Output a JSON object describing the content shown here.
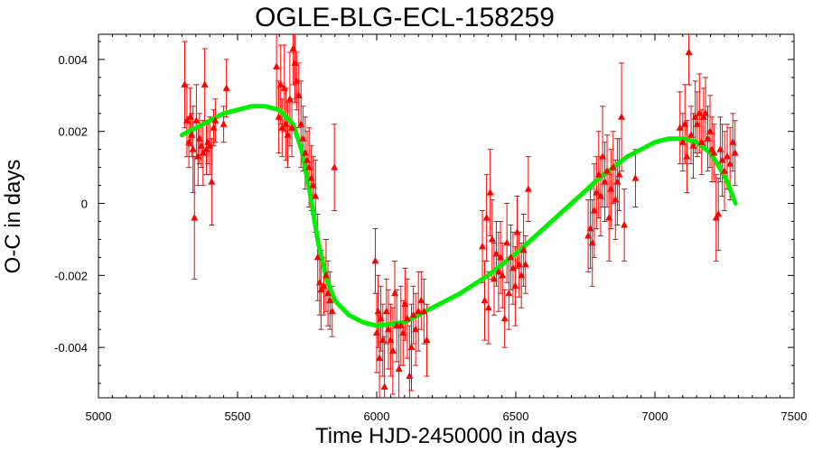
{
  "chart_data": {
    "type": "scatter",
    "title": "OGLE-BLG-ECL-158259",
    "xlabel": "Time HJD-2450000 in days",
    "ylabel": "O-C in days",
    "xlim": [
      5000,
      7500
    ],
    "ylim": [
      -0.0054,
      0.0047
    ],
    "x_ticks": [
      5000,
      5500,
      6000,
      6500,
      7000,
      7500
    ],
    "y_ticks": [
      -0.004,
      -0.002,
      0,
      0.002,
      0.004
    ],
    "x_tick_labels": [
      "5000",
      "5500",
      "6000",
      "6500",
      "7000",
      "7500"
    ],
    "y_tick_labels": [
      "-0.004",
      "-0.002",
      "0",
      "0.002",
      "0.004"
    ],
    "grid": false,
    "colors": {
      "points": "#ff0000",
      "fit": "#00ee00",
      "axes": "#000000"
    },
    "series": [
      {
        "type": "scatter_errorbars",
        "marker": "triangle",
        "x": [
          5310,
          5318,
          5325,
          5330,
          5335,
          5340,
          5345,
          5352,
          5358,
          5363,
          5370,
          5376,
          5382,
          5388,
          5393,
          5400,
          5407,
          5414,
          5420,
          5450,
          5460,
          5640,
          5648,
          5655,
          5660,
          5668,
          5674,
          5680,
          5688,
          5695,
          5700,
          5706,
          5712,
          5720,
          5728,
          5735,
          5743,
          5750,
          5757,
          5765,
          5772,
          5780,
          5788,
          5795,
          5800,
          5810,
          5818,
          5825,
          5832,
          5840,
          5848,
          5995,
          6000,
          6005,
          6010,
          6015,
          6022,
          6028,
          6035,
          6042,
          6050,
          6058,
          6065,
          6072,
          6080,
          6087,
          6095,
          6102,
          6110,
          6118,
          6125,
          6132,
          6140,
          6150,
          6160,
          6170,
          6180,
          6380,
          6388,
          6395,
          6402,
          6408,
          6415,
          6422,
          6430,
          6438,
          6445,
          6452,
          6460,
          6468,
          6475,
          6482,
          6490,
          6498,
          6505,
          6512,
          6520,
          6528,
          6535,
          6545,
          6760,
          6768,
          6775,
          6782,
          6790,
          6798,
          6805,
          6812,
          6820,
          6828,
          6835,
          6842,
          6850,
          6858,
          6865,
          6872,
          6880,
          6890,
          6930,
          7090,
          7100,
          7108,
          7115,
          7122,
          7130,
          7138,
          7145,
          7152,
          7160,
          7168,
          7175,
          7182,
          7190,
          7198,
          7205,
          7212,
          7220,
          7228,
          7235,
          7242,
          7250,
          7260,
          7270,
          7280,
          7288
        ],
        "y": [
          0.0033,
          0.0023,
          0.0017,
          0.0024,
          0.0019,
          0.0015,
          -0.0004,
          0.0023,
          0.0013,
          0.0018,
          0.0016,
          0.0014,
          0.0033,
          0.0015,
          0.0017,
          0.0016,
          0.0006,
          0.0021,
          0.0023,
          0.0022,
          0.0032,
          0.0038,
          0.0024,
          0.0033,
          0.0021,
          0.0032,
          0.0022,
          0.0019,
          0.0029,
          0.0021,
          0.0043,
          0.0039,
          0.0034,
          0.003,
          0.0022,
          0.0018,
          0.0014,
          0.0012,
          0.001,
          0.0007,
          0.0005,
          0.0002,
          -0.0015,
          -0.0022,
          -0.0024,
          -0.0023,
          -0.002,
          -0.0025,
          -0.0027,
          -0.003,
          0.001,
          -0.0016,
          -0.0036,
          -0.003,
          -0.0043,
          -0.0032,
          -0.0038,
          -0.0051,
          -0.003,
          -0.0035,
          -0.0038,
          -0.0041,
          -0.0025,
          -0.0034,
          -0.0046,
          -0.0034,
          -0.0036,
          -0.0028,
          -0.0032,
          -0.0048,
          -0.004,
          -0.0031,
          -0.0035,
          -0.003,
          -0.0027,
          -0.003,
          -0.0038,
          -0.0012,
          -0.0027,
          -0.0004,
          -0.0029,
          0.0003,
          -0.001,
          -0.0021,
          -0.0014,
          -0.0019,
          -0.0015,
          -0.002,
          -0.0032,
          -0.0011,
          -0.0025,
          -0.0015,
          -0.0018,
          -0.0023,
          -0.0008,
          -0.0017,
          -0.002,
          -0.0013,
          -0.0017,
          0.0004,
          -0.0009,
          -0.0007,
          -0.0011,
          -0.0002,
          0.0003,
          0.0008,
          0.0002,
          0.0013,
          0.0006,
          0.0009,
          -0.0004,
          0.0004,
          0.001,
          0.0001,
          0.0006,
          0.0008,
          0.0024,
          -0.0006,
          0.0007,
          0.0021,
          0.0017,
          0.0022,
          0.0013,
          0.0042,
          0.0019,
          0.0016,
          0.0024,
          0.0022,
          0.0025,
          0.0017,
          0.0024,
          0.0025,
          0.0018,
          0.002,
          0.0015,
          0.0014,
          -0.0004,
          -0.0003,
          0.0015,
          0.0012,
          0.0009,
          0.0013,
          0.0011,
          0.0017,
          0.0014
        ],
        "yerr": [
          0.0012,
          0.001,
          0.0007,
          0.0008,
          0.0006,
          0.0012,
          0.0017,
          0.001,
          0.0008,
          0.0007,
          0.0006,
          0.0009,
          0.001,
          0.0007,
          0.0006,
          0.0008,
          0.0012,
          0.0005,
          0.0006,
          0.0005,
          0.0008,
          0.0012,
          0.001,
          0.0011,
          0.0008,
          0.0012,
          0.001,
          0.0009,
          0.0013,
          0.0008,
          0.001,
          0.0011,
          0.0008,
          0.0009,
          0.0012,
          0.0009,
          0.001,
          0.0008,
          0.0011,
          0.0009,
          0.0008,
          0.001,
          0.0012,
          0.0009,
          0.0011,
          0.0008,
          0.001,
          0.0009,
          0.0008,
          0.0007,
          0.0012,
          0.0009,
          0.0011,
          0.001,
          0.0012,
          0.0009,
          0.001,
          0.0014,
          0.0009,
          0.0011,
          0.001,
          0.0012,
          0.0009,
          0.001,
          0.0013,
          0.0011,
          0.0009,
          0.001,
          0.0011,
          0.0014,
          0.0012,
          0.0008,
          0.001,
          0.0011,
          0.0008,
          0.0009,
          0.001,
          0.001,
          0.0011,
          0.0012,
          0.001,
          0.0012,
          0.0011,
          0.001,
          0.0009,
          0.0011,
          0.001,
          0.0009,
          0.0008,
          0.0011,
          0.001,
          0.0009,
          0.001,
          0.0011,
          0.001,
          0.0009,
          0.0009,
          0.001,
          0.0008,
          0.0009,
          0.001,
          0.0011,
          0.0012,
          0.0013,
          0.001,
          0.0012,
          0.0011,
          0.0014,
          0.0011,
          0.001,
          0.0012,
          0.0011,
          0.001,
          0.0011,
          0.0012,
          0.001,
          0.0015,
          0.001,
          0.0008,
          0.001,
          0.0008,
          0.0011,
          0.001,
          0.0009,
          0.0008,
          0.0009,
          0.001,
          0.0009,
          0.0011,
          0.0009,
          0.0008,
          0.001,
          0.0009,
          0.001,
          0.0009,
          0.0008,
          0.0012,
          0.001,
          0.0009,
          0.001,
          0.0011,
          0.0009,
          0.001,
          0.0008,
          0.0009
        ]
      },
      {
        "type": "fit_curve",
        "x": [
          5300,
          5350,
          5400,
          5450,
          5500,
          5550,
          5600,
          5650,
          5700,
          5730,
          5760,
          5790,
          5820,
          5850,
          5900,
          5950,
          6000,
          6050,
          6100,
          6150,
          6200,
          6300,
          6400,
          6500,
          6600,
          6700,
          6800,
          6900,
          7000,
          7050,
          7100,
          7150,
          7200,
          7240,
          7260,
          7280,
          7290
        ],
        "y": [
          0.0019,
          0.0021,
          0.0023,
          0.0025,
          0.0026,
          0.0027,
          0.0027,
          0.0026,
          0.0022,
          0.0015,
          0.0003,
          -0.0011,
          -0.0021,
          -0.0027,
          -0.0031,
          -0.0033,
          -0.0034,
          -0.00335,
          -0.0033,
          -0.0031,
          -0.0029,
          -0.0025,
          -0.002,
          -0.0014,
          -0.0007,
          0.0,
          0.0007,
          0.0013,
          0.0017,
          0.0018,
          0.0018,
          0.0017,
          0.0014,
          0.0009,
          0.0006,
          0.0002,
          0.0
        ]
      }
    ]
  }
}
